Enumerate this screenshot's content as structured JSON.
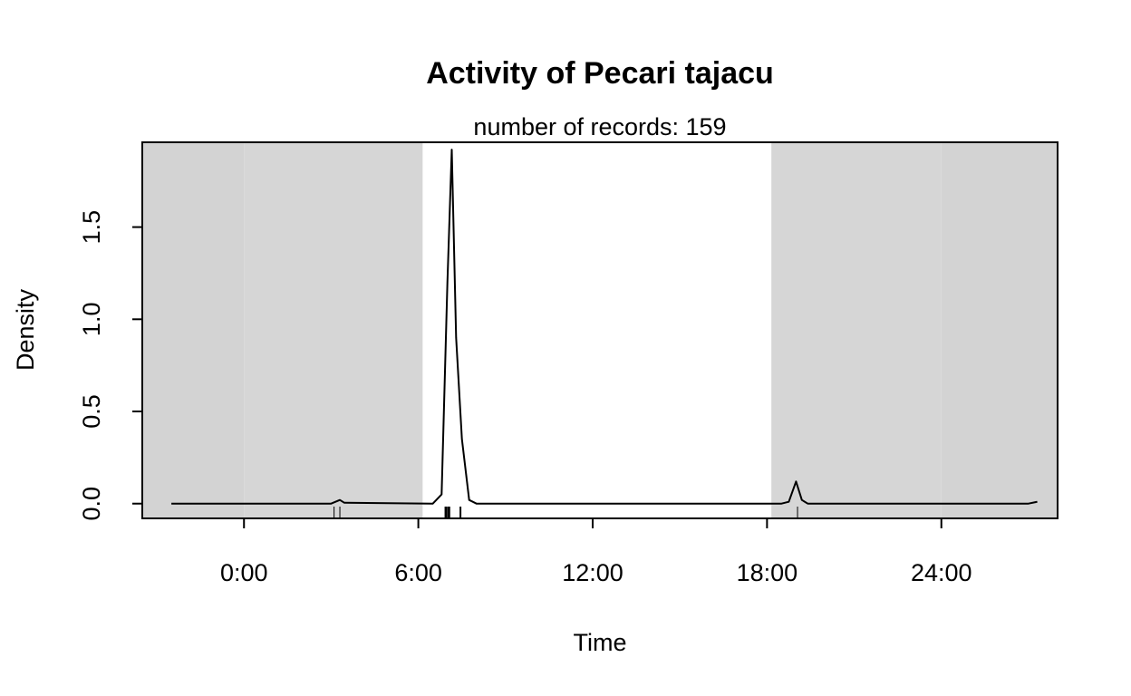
{
  "chart_data": {
    "type": "line",
    "title": "Activity of Pecari tajacu",
    "subtitle": "number of records: 159",
    "xlabel": "Time",
    "ylabel": "Density",
    "xlim": [
      -3.5,
      28.0
    ],
    "ylim": [
      -0.08,
      1.96
    ],
    "x_ticks": [
      {
        "value": 0,
        "label": "0:00"
      },
      {
        "value": 6,
        "label": "6:00"
      },
      {
        "value": 12,
        "label": "12:00"
      },
      {
        "value": 18,
        "label": "18:00"
      },
      {
        "value": 24,
        "label": "24:00"
      }
    ],
    "y_ticks": [
      {
        "value": 0.0,
        "label": "0.0"
      },
      {
        "value": 0.5,
        "label": "0.5"
      },
      {
        "value": 1.0,
        "label": "1.0"
      },
      {
        "value": 1.5,
        "label": "1.5"
      }
    ],
    "background_bands": [
      {
        "name": "night",
        "from": -3.5,
        "to": 0,
        "color": "#d3d3d3"
      },
      {
        "name": "night",
        "from": 0,
        "to": 6.15,
        "color": "#d6d6d6"
      },
      {
        "name": "day",
        "from": 6.15,
        "to": 18.15,
        "color": "#ffffff"
      },
      {
        "name": "night",
        "from": 18.15,
        "to": 24.0,
        "color": "#d6d6d6"
      },
      {
        "name": "night",
        "from": 24.0,
        "to": 28.0,
        "color": "#d3d3d3"
      }
    ],
    "series": [
      {
        "x": [
          -2.5,
          3.0,
          3.15,
          3.3,
          3.45,
          6.5,
          6.8,
          7.0,
          7.15,
          7.3,
          7.5,
          7.75,
          8.0,
          18.5,
          18.75,
          19.0,
          19.2,
          19.4,
          19.6,
          27.0,
          27.3
        ],
        "y": [
          0,
          0,
          0.01,
          0.02,
          0.005,
          0,
          0.05,
          1.2,
          1.92,
          0.9,
          0.35,
          0.02,
          0,
          0,
          0.01,
          0.12,
          0.02,
          0,
          0,
          0,
          0.01
        ],
        "color": "#000000"
      }
    ],
    "rug": [
      {
        "x": 3.1,
        "weight": 1
      },
      {
        "x": 3.3,
        "weight": 1
      },
      {
        "x": 6.95,
        "weight": 3
      },
      {
        "x": 7.05,
        "weight": 3
      },
      {
        "x": 7.45,
        "weight": 2
      },
      {
        "x": 19.05,
        "weight": 1
      }
    ],
    "grid": false,
    "legend": "none"
  }
}
